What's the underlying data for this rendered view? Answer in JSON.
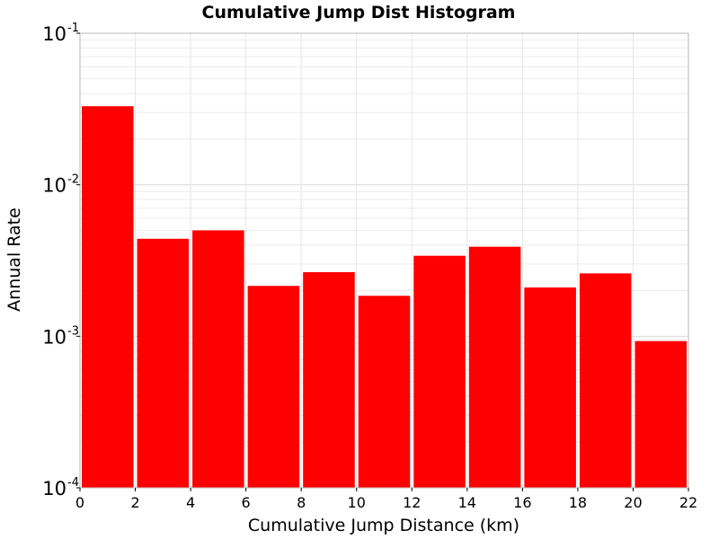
{
  "chart_data": {
    "type": "bar",
    "title": "Cumulative Jump Dist Histogram",
    "xlabel": "Cumulative Jump Distance (km)",
    "ylabel": "Annual Rate",
    "xlim": [
      0,
      22
    ],
    "ylim": [
      0.0001,
      0.1
    ],
    "yscale": "log",
    "grid": true,
    "xticks": [
      "0",
      "2",
      "4",
      "6",
      "8",
      "10",
      "12",
      "14",
      "16",
      "18",
      "20",
      "22"
    ],
    "yticks": [
      {
        "base": "10",
        "exp": "-4",
        "value": 0.0001
      },
      {
        "base": "10",
        "exp": "-3",
        "value": 0.001
      },
      {
        "base": "10",
        "exp": "-2",
        "value": 0.01
      },
      {
        "base": "10",
        "exp": "-1",
        "value": 0.1
      }
    ],
    "bar_color": "#ff0000",
    "bins": [
      {
        "x0": 0,
        "x1": 2,
        "value": 0.033
      },
      {
        "x0": 2,
        "x1": 4,
        "value": 0.0044
      },
      {
        "x0": 4,
        "x1": 6,
        "value": 0.005
      },
      {
        "x0": 6,
        "x1": 8,
        "value": 0.00215
      },
      {
        "x0": 8,
        "x1": 10,
        "value": 0.00265
      },
      {
        "x0": 10,
        "x1": 12,
        "value": 0.00185
      },
      {
        "x0": 12,
        "x1": 14,
        "value": 0.0034
      },
      {
        "x0": 14,
        "x1": 16,
        "value": 0.0039
      },
      {
        "x0": 16,
        "x1": 18,
        "value": 0.0021
      },
      {
        "x0": 18,
        "x1": 20,
        "value": 0.0026
      },
      {
        "x0": 20,
        "x1": 22,
        "value": 0.00093
      }
    ]
  }
}
